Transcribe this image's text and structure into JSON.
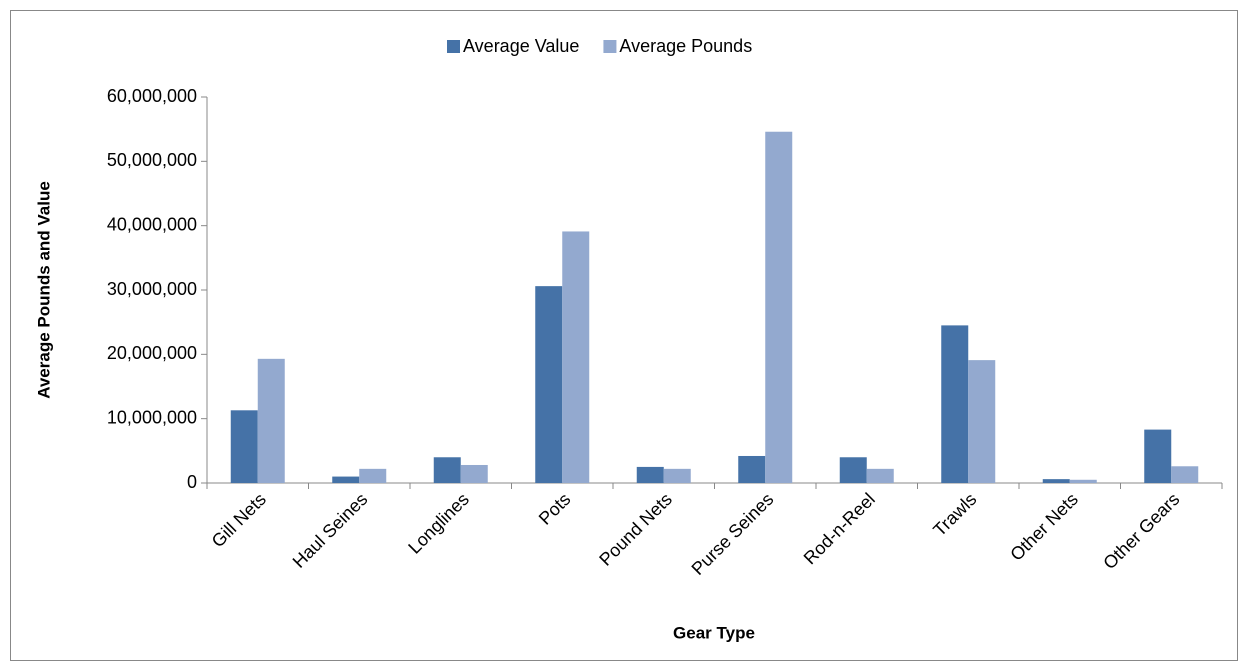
{
  "chart_data": {
    "type": "bar",
    "x_label": "Gear Type",
    "y_label": "Average Pounds and Value",
    "categories": [
      "Gill Nets",
      "Haul Seines",
      "Longlines",
      "Pots",
      "Pound Nets",
      "Purse Seines",
      "Rod-n-Reel",
      "Trawls",
      "Other Nets",
      "Other Gears"
    ],
    "series": [
      {
        "name": "Average Value",
        "color": "#4572a7",
        "values": [
          11300000,
          1000000,
          4000000,
          30600000,
          2500000,
          4200000,
          4000000,
          24500000,
          600000,
          8300000
        ]
      },
      {
        "name": "Average Pounds",
        "color": "#93a9cf",
        "values": [
          19300000,
          2200000,
          2800000,
          39100000,
          2200000,
          54600000,
          2200000,
          19100000,
          500000,
          2600000
        ]
      }
    ],
    "ylim": [
      0,
      60000000
    ],
    "yticks": [
      0,
      {
        "value": 10000000,
        "label": "10,000,000"
      },
      {
        "value": 20000000,
        "label": "20,000,000"
      },
      {
        "value": 30000000,
        "label": "30,000,000"
      },
      {
        "value": 40000000,
        "label": "40,000,000"
      },
      {
        "value": 50000000,
        "label": "50,000,000"
      },
      {
        "value": 60000000,
        "label": "60,000,000"
      }
    ],
    "legend": "top"
  }
}
